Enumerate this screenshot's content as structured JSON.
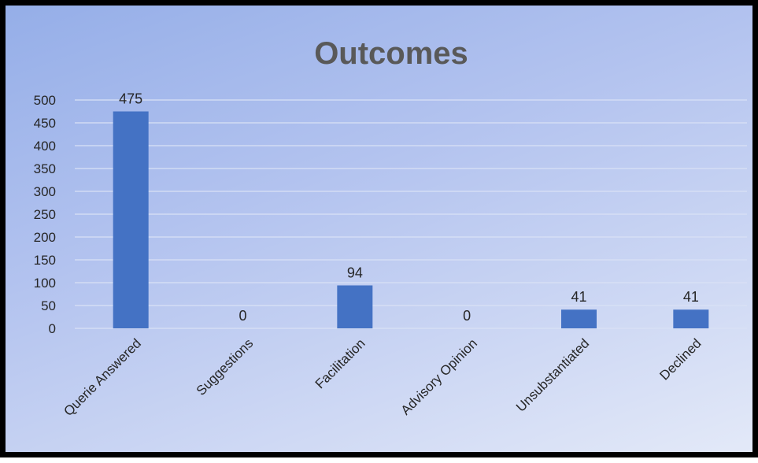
{
  "chart_data": {
    "type": "bar",
    "title": "Outcomes",
    "categories": [
      "Querie Answered",
      "Suggestions",
      "Facilitation",
      "Advisory Opinion",
      "Unsubstantiated",
      "Declined"
    ],
    "values": [
      475,
      0,
      94,
      0,
      41,
      41
    ],
    "data_labels": [
      "475",
      "0",
      "94",
      "0",
      "41",
      "41"
    ],
    "ylim": [
      0,
      500
    ],
    "yticks": [
      "0",
      "50",
      "100",
      "150",
      "200",
      "250",
      "300",
      "350",
      "400",
      "450",
      "500"
    ],
    "xlabel": "",
    "ylabel": "",
    "grid": true,
    "legend": "none",
    "colors": {
      "bar": "#4472c4",
      "grid": "#d9e1f5",
      "text": "#262626",
      "title": "#595959"
    }
  }
}
